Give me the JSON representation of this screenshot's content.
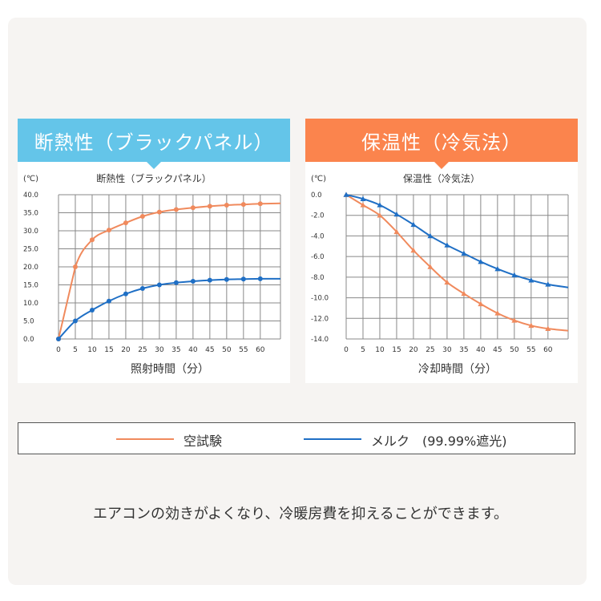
{
  "colors": {
    "series1": "#f08a5d",
    "series2": "#1f6fc5",
    "header_left": "#64c5e9",
    "header_right": "#fb844d"
  },
  "legend": {
    "series1": "空試験",
    "series2": "メルク　(99.99%遮光)"
  },
  "caption": "エアコンの効きがよくなり、冷暖房費を抑えることができます。",
  "chart_data": [
    {
      "type": "line",
      "panel_title": "断熱性（ブラックパネル）",
      "title": "断熱性（ブラックパネル）",
      "yunit": "(℃)",
      "xlabel": "照射時間（分）",
      "xlim": [
        0,
        66
      ],
      "ylim": [
        0,
        40
      ],
      "xticks": [
        0,
        5,
        10,
        15,
        20,
        25,
        30,
        35,
        40,
        45,
        50,
        55,
        60
      ],
      "yticks": [
        "0.0",
        "5.0",
        "10.0",
        "15.0",
        "20.0",
        "25.0",
        "30.0",
        "35.0",
        "40.0"
      ],
      "grid": true,
      "marker": "circle",
      "series": [
        {
          "name": "空試験",
          "color": "#f08a5d",
          "x": [
            0,
            5,
            10,
            15,
            20,
            25,
            30,
            35,
            40,
            45,
            50,
            55,
            60,
            66
          ],
          "y": [
            0,
            20,
            27.5,
            30.2,
            32.2,
            34,
            35.2,
            35.9,
            36.4,
            36.8,
            37.1,
            37.3,
            37.5,
            37.6
          ]
        },
        {
          "name": "メルク (99.99%遮光)",
          "color": "#1f6fc5",
          "x": [
            0,
            5,
            10,
            15,
            20,
            25,
            30,
            35,
            40,
            45,
            50,
            55,
            60,
            66
          ],
          "y": [
            0,
            5,
            8,
            10.5,
            12.5,
            14,
            15,
            15.6,
            16,
            16.3,
            16.5,
            16.6,
            16.7,
            16.7
          ]
        }
      ]
    },
    {
      "type": "line",
      "panel_title": "保温性（冷気法）",
      "title": "保温性（冷気法）",
      "yunit": "(℃)",
      "xlabel": "冷却時間（分）",
      "xlim": [
        0,
        66
      ],
      "ylim": [
        -14,
        0
      ],
      "xticks": [
        0,
        5,
        10,
        15,
        20,
        25,
        30,
        35,
        40,
        45,
        50,
        55,
        60
      ],
      "yticks": [
        "0.0",
        "-2.0",
        "-4.0",
        "-6.0",
        "-8.0",
        "-10.0",
        "-12.0",
        "-14.0"
      ],
      "grid": true,
      "marker": "triangle",
      "series": [
        {
          "name": "空試験",
          "color": "#f08a5d",
          "x": [
            0,
            5,
            10,
            15,
            20,
            25,
            30,
            35,
            40,
            45,
            50,
            55,
            60,
            66
          ],
          "y": [
            0,
            -1,
            -2,
            -3.6,
            -5.4,
            -7,
            -8.5,
            -9.6,
            -10.6,
            -11.5,
            -12.2,
            -12.7,
            -13,
            -13.2
          ]
        },
        {
          "name": "メルク (99.99%遮光)",
          "color": "#1f6fc5",
          "x": [
            0,
            5,
            10,
            15,
            20,
            25,
            30,
            35,
            40,
            45,
            50,
            55,
            60,
            66
          ],
          "y": [
            0,
            -0.4,
            -1,
            -1.9,
            -2.9,
            -4,
            -4.9,
            -5.7,
            -6.5,
            -7.2,
            -7.8,
            -8.3,
            -8.7,
            -9
          ]
        }
      ]
    }
  ]
}
